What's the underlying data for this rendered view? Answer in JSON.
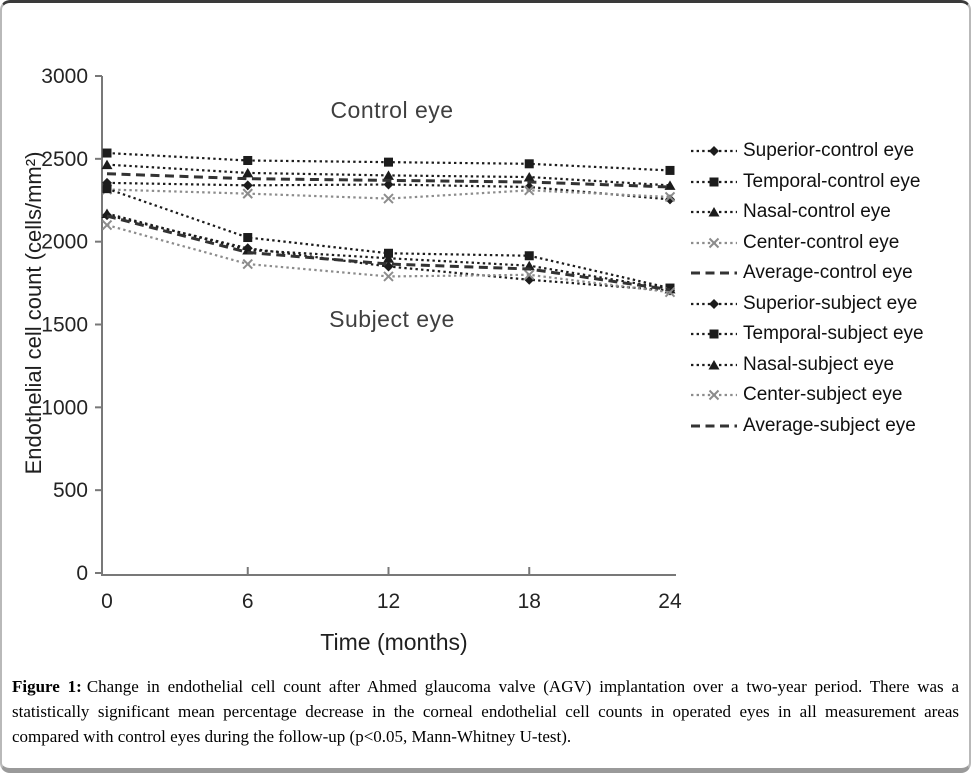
{
  "figure": {
    "caption_label": "Figure 1:",
    "caption_text": "Change in endothelial cell count after Ahmed glaucoma valve (AGV) implantation over a two-year period. There was a statistically significant mean percentage decrease in the corneal endothelial cell counts in operated eyes in all measurement areas compared with control eyes during the follow-up (p<0.05, Mann-Whitney U-test)."
  },
  "chart_data": {
    "type": "line",
    "title": "",
    "xlabel": "Time (months)",
    "ylabel": "Endothelial cell count (cells/mm²)",
    "x": [
      0,
      6,
      12,
      18,
      24
    ],
    "xlim": [
      0,
      24
    ],
    "ylim": [
      0,
      3000
    ],
    "yticks": [
      0,
      500,
      1000,
      1500,
      2000,
      2500,
      3000
    ],
    "grid": false,
    "legend_position": "right",
    "axis_color": "#787878",
    "tick_label_color": "#242424",
    "annotations": [
      {
        "text": "Control eye"
      },
      {
        "text": "Subject eye"
      }
    ],
    "series": [
      {
        "name": "Superior-control eye",
        "marker": "diamond",
        "line_style": "dotted",
        "color": "#1c1c1c",
        "values": [
          2355,
          2340,
          2345,
          2330,
          2255
        ]
      },
      {
        "name": "Temporal-control eye",
        "marker": "square",
        "line_style": "dotted",
        "color": "#1c1c1c",
        "values": [
          2535,
          2490,
          2480,
          2470,
          2430
        ]
      },
      {
        "name": "Nasal-control eye",
        "marker": "triangle",
        "line_style": "dotted",
        "color": "#1c1c1c",
        "values": [
          2465,
          2415,
          2400,
          2390,
          2340
        ]
      },
      {
        "name": "Center-control eye",
        "marker": "x",
        "line_style": "dotted",
        "color": "#8c8c8c",
        "values": [
          2315,
          2290,
          2260,
          2310,
          2270
        ]
      },
      {
        "name": "Average-control eye",
        "marker": "none",
        "line_style": "dashed",
        "color": "#333333",
        "values": [
          2410,
          2380,
          2370,
          2360,
          2330
        ]
      },
      {
        "name": "Superior-subject eye",
        "marker": "diamond",
        "line_style": "dotted",
        "color": "#1c1c1c",
        "values": [
          2160,
          1960,
          1850,
          1770,
          1705
        ]
      },
      {
        "name": "Temporal-subject eye",
        "marker": "square",
        "line_style": "dotted",
        "color": "#1c1c1c",
        "values": [
          2320,
          2025,
          1930,
          1915,
          1720
        ]
      },
      {
        "name": "Nasal-subject eye",
        "marker": "triangle",
        "line_style": "dotted",
        "color": "#1c1c1c",
        "values": [
          2170,
          1950,
          1900,
          1855,
          1715
        ]
      },
      {
        "name": "Center-subject eye",
        "marker": "x",
        "line_style": "dotted",
        "color": "#8c8c8c",
        "values": [
          2100,
          1865,
          1790,
          1800,
          1695
        ]
      },
      {
        "name": "Average-subject eye",
        "marker": "none",
        "line_style": "dashed",
        "color": "#333333",
        "values": [
          2155,
          1935,
          1865,
          1835,
          1710
        ]
      }
    ]
  }
}
